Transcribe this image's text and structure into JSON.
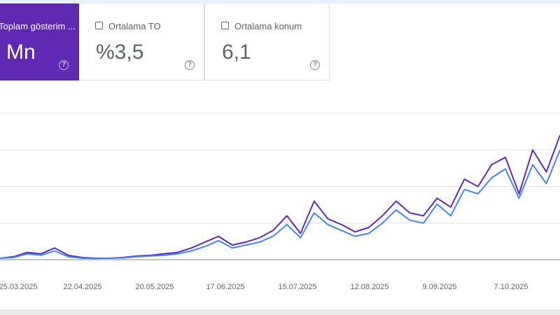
{
  "cards": [
    {
      "label": "Toplam gösterim ...",
      "value": "Mn",
      "help_icon": "help-circle-icon"
    },
    {
      "label": "Ortalama TO",
      "value": "%3,5",
      "help_icon": "help-circle-icon"
    },
    {
      "label": "Ortalama konum",
      "value": "6,1",
      "help_icon": "help-circle-icon"
    }
  ],
  "colors": {
    "active_card": "#5e2ab1",
    "series_impressions": "#5e2ab1",
    "series_clicks": "#4285f4",
    "grid": "#e0e0e0",
    "axis": "#9aa0a6"
  },
  "chart_data": {
    "type": "line",
    "x_ticks": [
      "25.03.2025",
      "22.04.2025",
      "20.05.2025",
      "17.06.2025",
      "15.07.2025",
      "12.08.2025",
      "9.09.2025",
      "7.10.2025"
    ],
    "y_gridlines": 4,
    "series": [
      {
        "values": [
          1,
          2,
          5,
          4,
          8,
          3,
          1.5,
          1,
          1,
          1.5,
          2.5,
          3,
          4,
          5,
          8,
          12,
          16,
          10,
          12,
          15,
          20,
          30,
          18,
          40,
          28,
          24,
          19,
          22,
          30,
          40,
          32,
          30,
          42,
          36,
          55,
          50,
          65,
          70,
          45,
          75,
          60,
          85
        ]
      },
      {
        "values": [
          1,
          1.5,
          4,
          3,
          6,
          2,
          1,
          0.8,
          1,
          1.2,
          2,
          2.5,
          3,
          4,
          6,
          9,
          13,
          8,
          10,
          12,
          16,
          24,
          15,
          32,
          24,
          20,
          16,
          18,
          25,
          34,
          27,
          25,
          38,
          30,
          48,
          45,
          56,
          62,
          42,
          65,
          52,
          75
        ]
      }
    ]
  }
}
